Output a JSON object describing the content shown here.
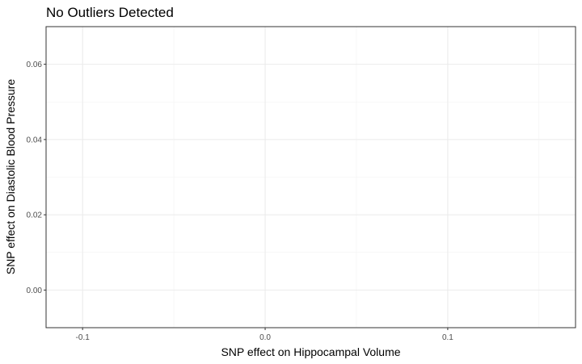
{
  "chart_data": {
    "type": "scatter",
    "title": "No Outliers Detected",
    "xlabel": "SNP effect on Hippocampal Volume",
    "ylabel": "SNP effect on Diastolic Blood Pressure",
    "xlim": [
      -0.12,
      0.17
    ],
    "ylim": [
      -0.01,
      0.07
    ],
    "x_ticks": [
      {
        "value": -0.1,
        "label": "-0.1"
      },
      {
        "value": 0.0,
        "label": "0.0"
      },
      {
        "value": 0.1,
        "label": "0.1"
      }
    ],
    "y_ticks": [
      {
        "value": 0.0,
        "label": "0.00"
      },
      {
        "value": 0.02,
        "label": "0.02"
      },
      {
        "value": 0.04,
        "label": "0.04"
      },
      {
        "value": 0.06,
        "label": "0.06"
      }
    ],
    "x_minor": [
      -0.05,
      0.05,
      0.15
    ],
    "y_minor": [
      0.01,
      0.03,
      0.05
    ],
    "grid": true,
    "points": []
  }
}
